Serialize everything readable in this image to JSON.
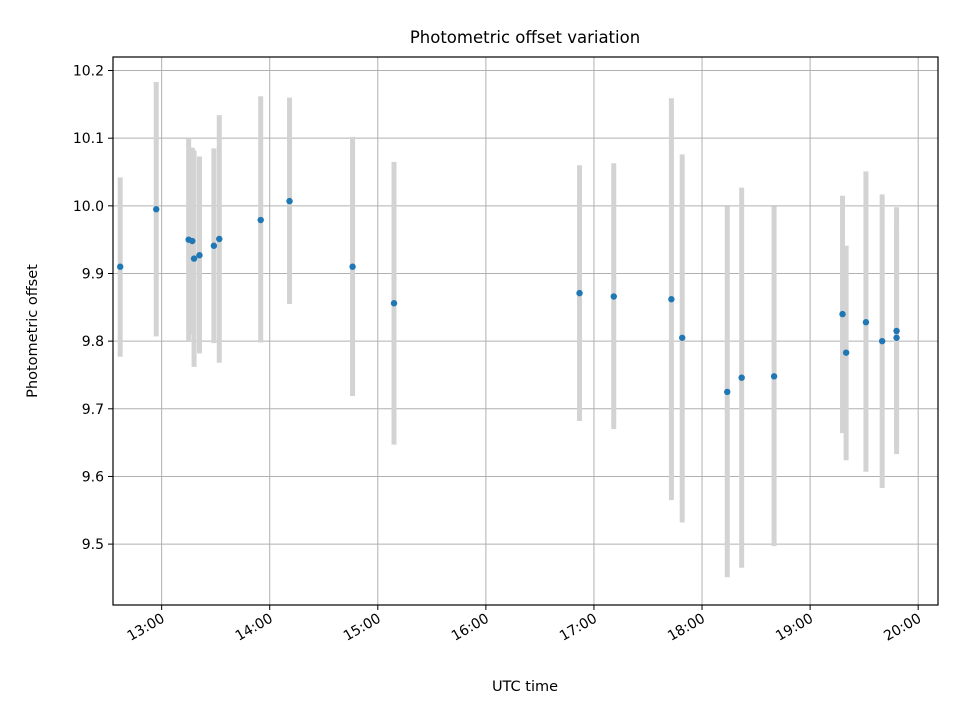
{
  "chart_data": {
    "type": "scatter",
    "title": "Photometric offset variation",
    "xlabel": "UTC time",
    "ylabel": "Photometric offset",
    "xlim": [
      "12:33",
      "20:11"
    ],
    "ylim": [
      9.41,
      10.22
    ],
    "x_ticks": [
      "13:00",
      "14:00",
      "15:00",
      "16:00",
      "17:00",
      "18:00",
      "19:00",
      "20:00"
    ],
    "y_ticks": [
      9.5,
      9.6,
      9.7,
      9.8,
      9.9,
      10.0,
      10.1,
      10.2
    ],
    "grid": true,
    "marker_color": "#1f77b4",
    "errorbar_color": "#d3d3d3",
    "points": [
      {
        "x": "12:37",
        "y": 9.91,
        "lo": 9.777,
        "hi": 10.042
      },
      {
        "x": "12:57",
        "y": 9.995,
        "lo": 9.807,
        "hi": 10.183
      },
      {
        "x": "13:15",
        "y": 9.95,
        "lo": 9.8,
        "hi": 10.1
      },
      {
        "x": "13:17",
        "y": 9.948,
        "lo": 9.81,
        "hi": 10.086
      },
      {
        "x": "13:18",
        "y": 9.922,
        "lo": 9.762,
        "hi": 10.082
      },
      {
        "x": "13:21",
        "y": 9.927,
        "lo": 9.782,
        "hi": 10.073
      },
      {
        "x": "13:29",
        "y": 9.941,
        "lo": 9.797,
        "hi": 10.085
      },
      {
        "x": "13:32",
        "y": 9.951,
        "lo": 9.768,
        "hi": 10.134
      },
      {
        "x": "13:55",
        "y": 9.979,
        "lo": 9.798,
        "hi": 10.162
      },
      {
        "x": "14:11",
        "y": 10.007,
        "lo": 9.855,
        "hi": 10.16
      },
      {
        "x": "14:46",
        "y": 9.91,
        "lo": 9.719,
        "hi": 10.102
      },
      {
        "x": "15:09",
        "y": 9.856,
        "lo": 9.647,
        "hi": 10.065
      },
      {
        "x": "16:52",
        "y": 9.871,
        "lo": 9.682,
        "hi": 10.06
      },
      {
        "x": "17:11",
        "y": 9.866,
        "lo": 9.67,
        "hi": 10.063
      },
      {
        "x": "17:43",
        "y": 9.862,
        "lo": 9.565,
        "hi": 10.159
      },
      {
        "x": "17:49",
        "y": 9.805,
        "lo": 9.532,
        "hi": 10.076
      },
      {
        "x": "18:14",
        "y": 9.725,
        "lo": 9.451,
        "hi": 9.999
      },
      {
        "x": "18:22",
        "y": 9.746,
        "lo": 9.465,
        "hi": 10.027
      },
      {
        "x": "18:40",
        "y": 9.748,
        "lo": 9.497,
        "hi": 9.999
      },
      {
        "x": "19:18",
        "y": 9.84,
        "lo": 9.664,
        "hi": 10.015
      },
      {
        "x": "19:20",
        "y": 9.783,
        "lo": 9.624,
        "hi": 9.941
      },
      {
        "x": "19:31",
        "y": 9.828,
        "lo": 9.607,
        "hi": 10.051
      },
      {
        "x": "19:40",
        "y": 9.8,
        "lo": 9.583,
        "hi": 10.017
      },
      {
        "x": "19:48",
        "y": 9.815,
        "lo": 9.633,
        "hi": 9.998
      },
      {
        "x": "19:48",
        "y": 9.805,
        "lo": 9.64,
        "hi": 9.97
      }
    ]
  }
}
